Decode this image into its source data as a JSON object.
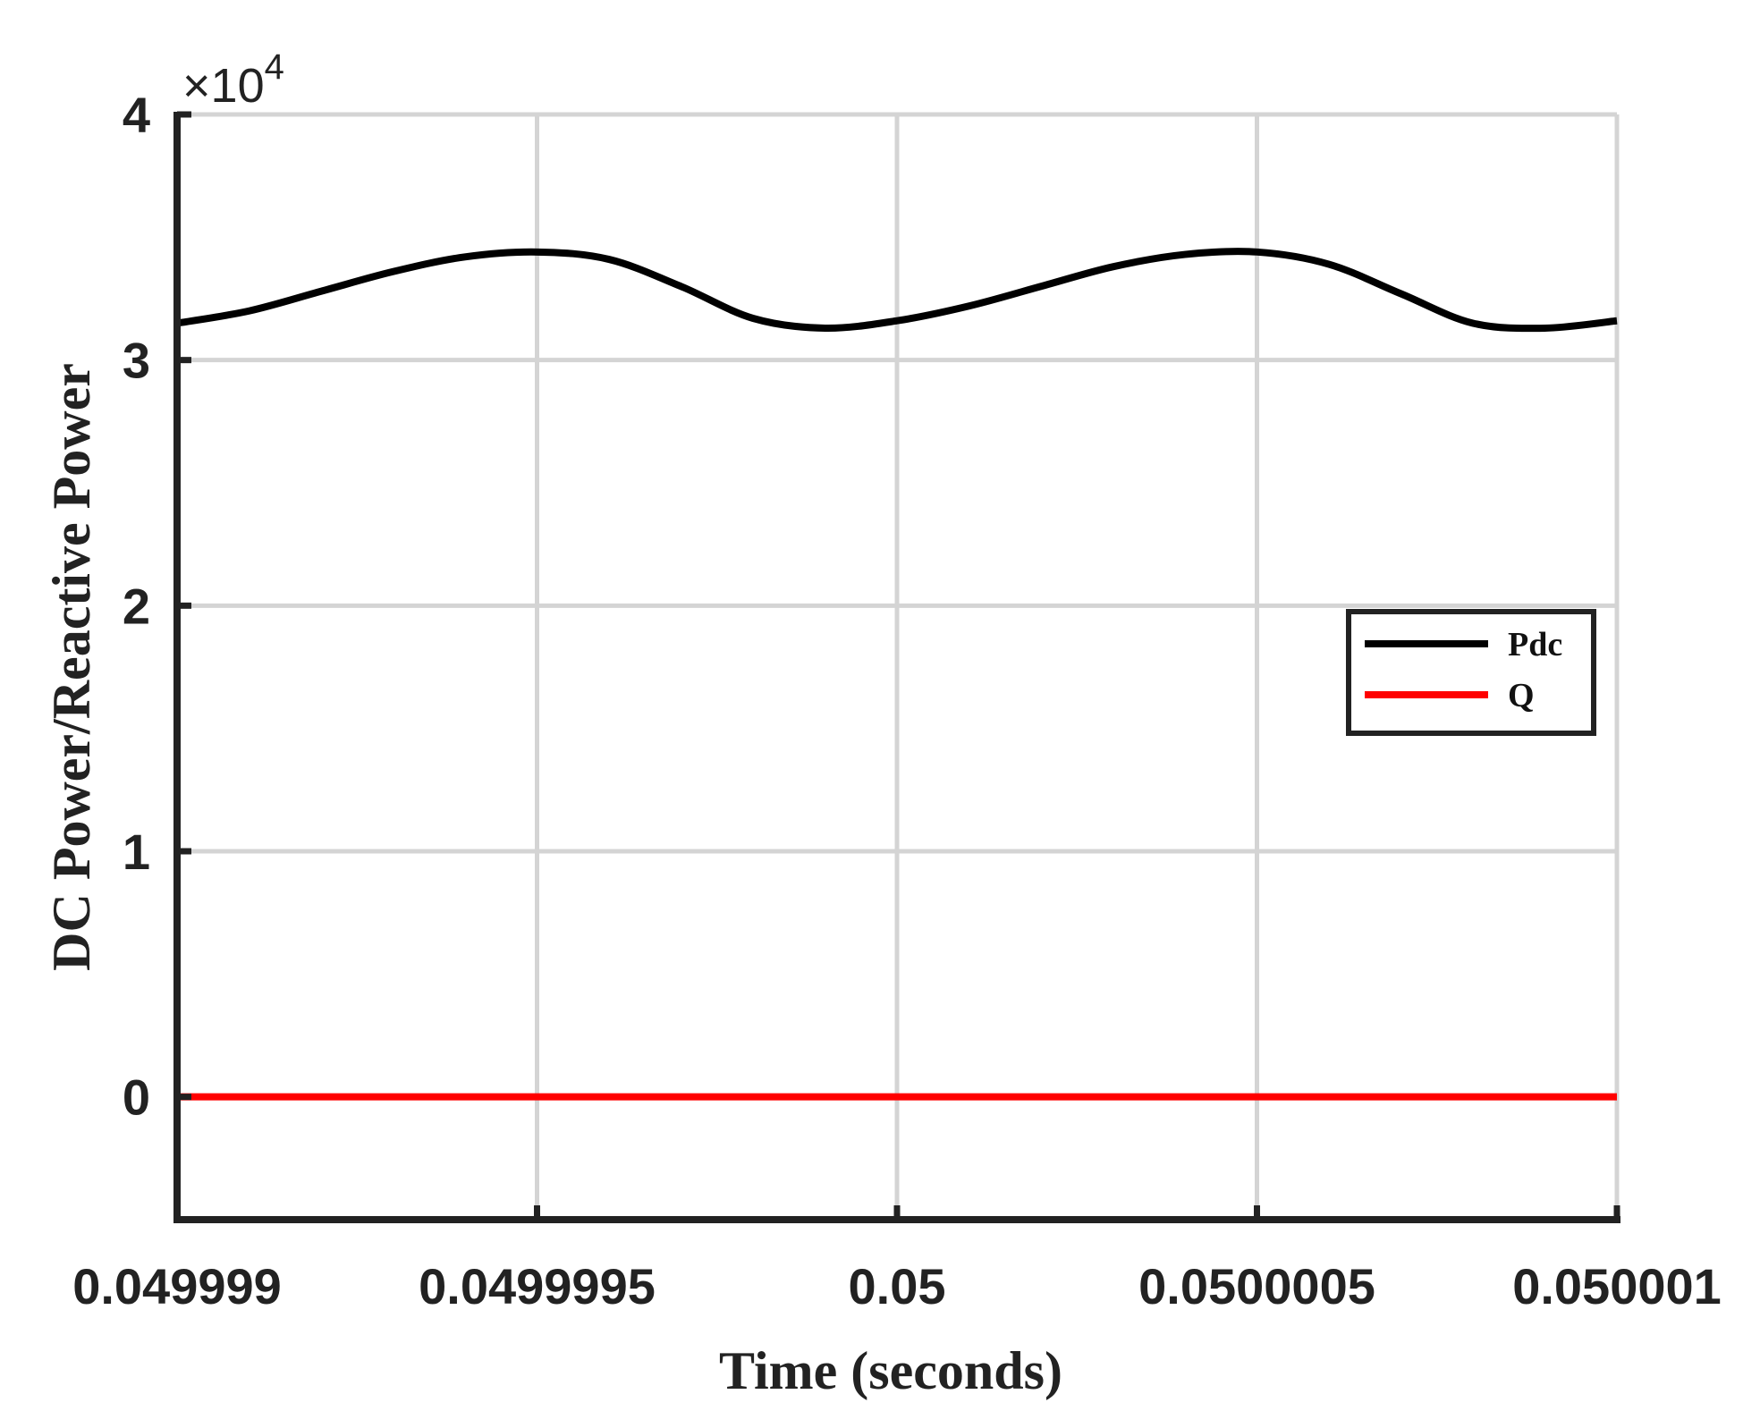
{
  "chart_data": {
    "type": "line",
    "xlabel": "Time (seconds)",
    "ylabel": "DC Power/Reactive Power",
    "y_exponent_label": {
      "prefix": "×10",
      "power": "4"
    },
    "xlim": [
      0.049999,
      0.050001
    ],
    "ylim": [
      -0.5,
      4
    ],
    "y_scale_factor": 10000,
    "x_ticks": [
      0.049999,
      0.0499995,
      0.05,
      0.0500005,
      0.050001
    ],
    "x_tick_labels": [
      "0.049999",
      "0.0499995",
      "0.05",
      "0.0500005",
      "0.050001"
    ],
    "y_ticks": [
      0,
      1,
      2,
      3,
      4
    ],
    "y_tick_labels": [
      "0",
      "1",
      "2",
      "3",
      "4"
    ],
    "grid": true,
    "legend_position": "right",
    "series": [
      {
        "name": "Pdc",
        "color": "#000000",
        "x": [
          0.049999,
          0.0499991,
          0.0499992,
          0.0499993,
          0.0499994,
          0.0499995,
          0.0499996,
          0.0499997,
          0.0499998,
          0.0499999,
          0.05,
          0.0500001,
          0.0500002,
          0.0500003,
          0.0500004,
          0.0500005,
          0.0500006,
          0.0500007,
          0.0500008,
          0.0500009,
          0.050001
        ],
        "values": [
          3.15,
          3.2,
          3.28,
          3.36,
          3.42,
          3.44,
          3.41,
          3.3,
          3.17,
          3.13,
          3.16,
          3.22,
          3.3,
          3.38,
          3.43,
          3.44,
          3.39,
          3.27,
          3.15,
          3.13,
          3.16
        ]
      },
      {
        "name": "Q",
        "color": "#ff0000",
        "x": [
          0.049999,
          0.050001
        ],
        "values": [
          0,
          0
        ]
      }
    ]
  }
}
